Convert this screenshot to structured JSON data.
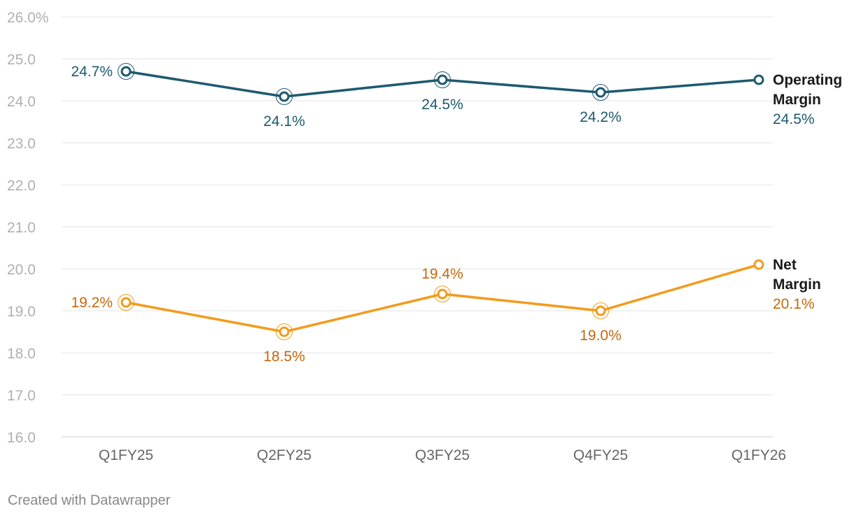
{
  "colors": {
    "operating": "#1d5a70",
    "net": "#f39b1c",
    "net_label": "#c4690a",
    "grid": "#e3e3e3",
    "tick": "#b0b0b0",
    "xtick": "#666666",
    "credit": "#888888",
    "series_name": "#1a1a1a"
  },
  "chart_data": {
    "type": "line",
    "categories": [
      "Q1FY25",
      "Q2FY25",
      "Q3FY25",
      "Q4FY25",
      "Q1FY26"
    ],
    "ylim": [
      16.0,
      26.0
    ],
    "yticks": [
      "26.0%",
      "25.0",
      "24.0",
      "23.0",
      "22.0",
      "21.0",
      "20.0",
      "19.0",
      "18.0",
      "17.0",
      "16.0"
    ],
    "ytick_values": [
      26,
      25,
      24,
      23,
      22,
      21,
      20,
      19,
      18,
      17,
      16
    ],
    "grid": true,
    "series": [
      {
        "key": "operating",
        "name_lines": [
          "Operating",
          "Margin"
        ],
        "values": [
          24.7,
          24.1,
          24.5,
          24.2,
          24.5
        ],
        "labels": [
          "24.7%",
          "24.1%",
          "24.5%",
          "24.2%",
          "24.5%"
        ],
        "label_positions": [
          "left",
          "below",
          "below",
          "below",
          "end"
        ]
      },
      {
        "key": "net",
        "name_lines": [
          "Net",
          "Margin"
        ],
        "values": [
          19.2,
          18.5,
          19.4,
          19.0,
          20.1
        ],
        "labels": [
          "19.2%",
          "18.5%",
          "19.4%",
          "19.0%",
          "20.1%"
        ],
        "label_positions": [
          "left",
          "below",
          "above",
          "below",
          "end"
        ]
      }
    ]
  },
  "footer": {
    "credit": "Created with Datawrapper"
  }
}
